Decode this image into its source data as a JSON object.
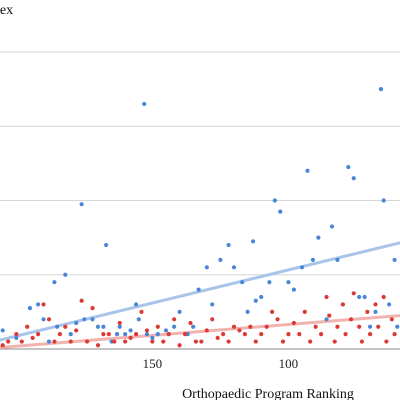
{
  "chart_data": {
    "type": "scatter",
    "title": "lex",
    "xlabel": "Orthopaedic Program Ranking",
    "ylabel": "",
    "x_reversed": true,
    "xlim": [
      206,
      59
    ],
    "ylim": [
      0,
      47
    ],
    "x_ticks": [
      150,
      100
    ],
    "grid": "horizontal",
    "series": [
      {
        "color": "#4a86d8",
        "trendline": {
          "color": "#a9c4ea",
          "from": [
            206,
            1.2
          ],
          "to": [
            59,
            14.3
          ]
        },
        "points": [
          [
            205,
            2.5
          ],
          [
            200,
            1.5
          ],
          [
            195,
            5.5
          ],
          [
            192,
            6
          ],
          [
            190,
            4
          ],
          [
            188,
            1
          ],
          [
            186,
            9
          ],
          [
            185,
            3
          ],
          [
            182,
            10
          ],
          [
            180,
            2
          ],
          [
            178,
            3.5
          ],
          [
            176,
            19.5
          ],
          [
            175,
            4
          ],
          [
            172,
            4
          ],
          [
            170,
            3
          ],
          [
            168,
            3
          ],
          [
            167,
            14
          ],
          [
            165,
            1
          ],
          [
            163,
            2
          ],
          [
            162,
            3
          ],
          [
            160,
            2
          ],
          [
            158,
            2.5
          ],
          [
            156,
            6
          ],
          [
            155,
            4
          ],
          [
            153,
            33
          ],
          [
            152,
            2
          ],
          [
            150,
            1.5
          ],
          [
            148,
            2
          ],
          [
            145,
            2.5
          ],
          [
            142,
            3
          ],
          [
            140,
            5
          ],
          [
            137,
            2
          ],
          [
            135,
            3
          ],
          [
            133,
            8
          ],
          [
            130,
            11
          ],
          [
            128,
            6
          ],
          [
            125,
            12
          ],
          [
            122,
            14
          ],
          [
            120,
            11
          ],
          [
            117,
            9
          ],
          [
            115,
            5
          ],
          [
            113,
            14.5
          ],
          [
            112,
            6.5
          ],
          [
            110,
            7
          ],
          [
            107,
            9
          ],
          [
            105,
            20
          ],
          [
            103,
            18.5
          ],
          [
            100,
            9
          ],
          [
            98,
            8
          ],
          [
            95,
            11
          ],
          [
            93,
            24
          ],
          [
            91,
            12
          ],
          [
            89,
            15
          ],
          [
            86,
            4
          ],
          [
            84,
            16.5
          ],
          [
            82,
            12
          ],
          [
            80,
            6
          ],
          [
            78,
            24.5
          ],
          [
            76,
            23
          ],
          [
            74,
            7
          ],
          [
            72,
            7
          ],
          [
            70,
            3
          ],
          [
            68,
            5
          ],
          [
            66,
            35
          ],
          [
            65,
            20
          ],
          [
            63,
            6
          ],
          [
            61,
            12
          ],
          [
            60,
            3
          ]
        ]
      },
      {
        "color": "#d93a33",
        "trendline": {
          "color": "#f2b2ae",
          "from": [
            206,
            0.2
          ],
          "to": [
            59,
            4.5
          ]
        },
        "points": [
          [
            205,
            0.5
          ],
          [
            203,
            1
          ],
          [
            200,
            2
          ],
          [
            198,
            1
          ],
          [
            196,
            3
          ],
          [
            194,
            1.5
          ],
          [
            192,
            2
          ],
          [
            190,
            6
          ],
          [
            188,
            4
          ],
          [
            186,
            1
          ],
          [
            184,
            2
          ],
          [
            182,
            3
          ],
          [
            180,
            1
          ],
          [
            178,
            2.5
          ],
          [
            176,
            6.5
          ],
          [
            174,
            1
          ],
          [
            172,
            5.5
          ],
          [
            170,
            0.5
          ],
          [
            168,
            2
          ],
          [
            166,
            2
          ],
          [
            164,
            1
          ],
          [
            162,
            3.5
          ],
          [
            160,
            1
          ],
          [
            158,
            1.5
          ],
          [
            156,
            2
          ],
          [
            154,
            5
          ],
          [
            152,
            2.5
          ],
          [
            150,
            1
          ],
          [
            148,
            3
          ],
          [
            146,
            1
          ],
          [
            144,
            2
          ],
          [
            142,
            4
          ],
          [
            140,
            0.5
          ],
          [
            138,
            2
          ],
          [
            136,
            3.5
          ],
          [
            134,
            1
          ],
          [
            132,
            1
          ],
          [
            130,
            2.5
          ],
          [
            128,
            4
          ],
          [
            126,
            1.5
          ],
          [
            124,
            2
          ],
          [
            122,
            1
          ],
          [
            120,
            3
          ],
          [
            118,
            2.5
          ],
          [
            116,
            2
          ],
          [
            114,
            3
          ],
          [
            112,
            1
          ],
          [
            110,
            2
          ],
          [
            108,
            3
          ],
          [
            106,
            5
          ],
          [
            104,
            4
          ],
          [
            102,
            1
          ],
          [
            100,
            2
          ],
          [
            98,
            3.5
          ],
          [
            96,
            2
          ],
          [
            94,
            5
          ],
          [
            92,
            1
          ],
          [
            90,
            3
          ],
          [
            88,
            2
          ],
          [
            86,
            7
          ],
          [
            85,
            4.5
          ],
          [
            83,
            1
          ],
          [
            82,
            3
          ],
          [
            80,
            6
          ],
          [
            79,
            2
          ],
          [
            77,
            4
          ],
          [
            76,
            7.5
          ],
          [
            74,
            3
          ],
          [
            73,
            1
          ],
          [
            71,
            5
          ],
          [
            70,
            2
          ],
          [
            68,
            6
          ],
          [
            67,
            3
          ],
          [
            65,
            7
          ],
          [
            64,
            1
          ],
          [
            62,
            4
          ],
          [
            61,
            2
          ]
        ]
      }
    ]
  }
}
